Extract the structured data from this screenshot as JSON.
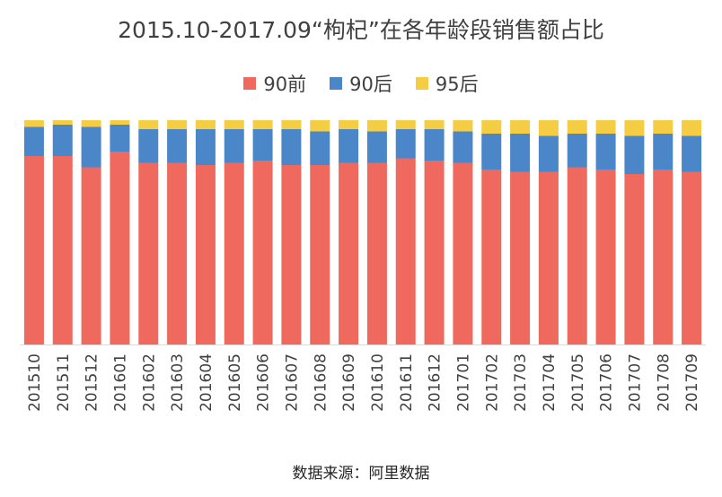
{
  "chart_data": {
    "type": "bar",
    "stacked": true,
    "percent_stacked": true,
    "title": "2015.10-2017.09“枸杞”在各年龄段销售额占比",
    "source": "数据来源：阿里数据",
    "legend_position": "top",
    "grid": false,
    "ylim": [
      0,
      100
    ],
    "categories": [
      "201510",
      "201511",
      "201512",
      "201601",
      "201602",
      "201603",
      "201604",
      "201605",
      "201606",
      "201607",
      "201608",
      "201609",
      "201610",
      "201611",
      "201612",
      "201701",
      "201702",
      "201703",
      "201704",
      "201705",
      "201706",
      "201707",
      "201708",
      "201709"
    ],
    "series": [
      {
        "name": "90前",
        "color": "#f0695e",
        "values": [
          84,
          84,
          79,
          86,
          81,
          81,
          80,
          81,
          82,
          80,
          80,
          81,
          81,
          83,
          82,
          81,
          78,
          77,
          77,
          79,
          78,
          76,
          78,
          77
        ]
      },
      {
        "name": "90后",
        "color": "#4b86c9",
        "values": [
          13,
          14,
          18,
          12,
          15,
          15,
          16,
          15,
          14,
          16,
          15,
          15,
          14,
          13,
          14,
          14,
          16,
          17,
          16,
          15,
          16,
          17,
          16,
          16
        ]
      },
      {
        "name": "95后",
        "color": "#f5cd45",
        "values": [
          3,
          2,
          3,
          2,
          4,
          4,
          4,
          4,
          4,
          4,
          5,
          4,
          5,
          4,
          4,
          5,
          6,
          6,
          7,
          6,
          6,
          7,
          6,
          7
        ]
      }
    ]
  }
}
